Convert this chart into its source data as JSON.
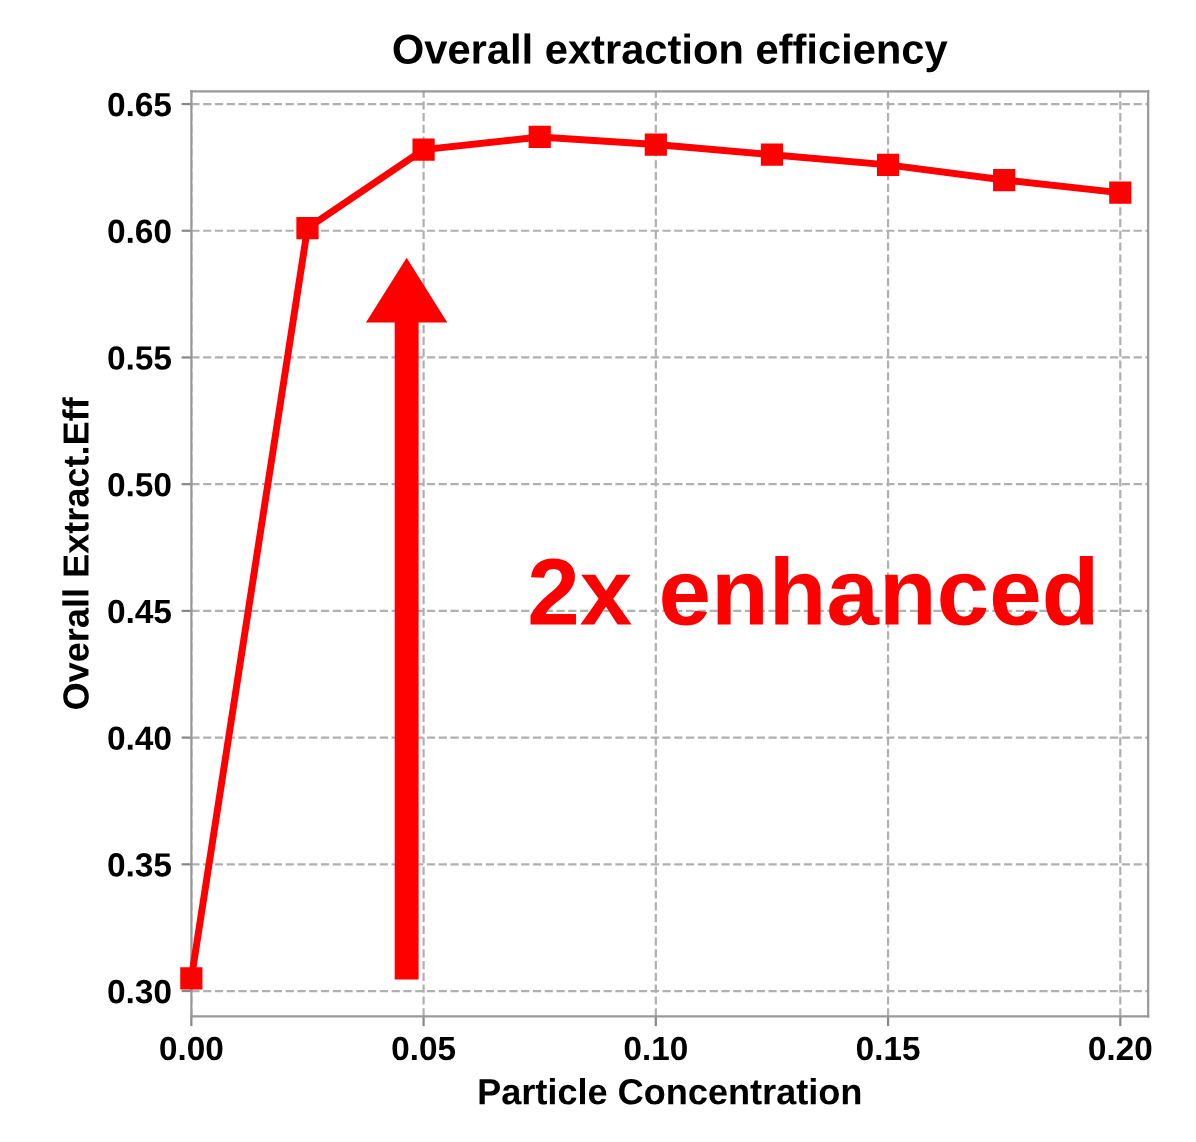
{
  "chart_data": {
    "type": "line",
    "title": "Overall extraction efficiency",
    "xlabel": "Particle Concentration",
    "ylabel": "Overall Extract.Eff",
    "x": [
      0.0,
      0.025,
      0.05,
      0.075,
      0.1,
      0.125,
      0.15,
      0.175,
      0.2
    ],
    "series": [
      {
        "color": "#ff0000",
        "values": [
          0.305,
          0.601,
          0.632,
          0.637,
          0.634,
          0.63,
          0.626,
          0.62,
          0.615
        ]
      }
    ],
    "xlim": [
      0.0,
      0.206
    ],
    "ylim": [
      0.29,
      0.655
    ],
    "xticks": [
      {
        "value": 0.0,
        "label": "0.00"
      },
      {
        "value": 0.05,
        "label": "0.05"
      },
      {
        "value": 0.1,
        "label": "0.10"
      },
      {
        "value": 0.15,
        "label": "0.15"
      },
      {
        "value": 0.2,
        "label": "0.20"
      }
    ],
    "yticks": [
      {
        "value": 0.3,
        "label": "0.30"
      },
      {
        "value": 0.35,
        "label": "0.35"
      },
      {
        "value": 0.4,
        "label": "0.40"
      },
      {
        "value": 0.45,
        "label": "0.45"
      },
      {
        "value": 0.5,
        "label": "0.50"
      },
      {
        "value": 0.55,
        "label": "0.55"
      },
      {
        "value": 0.6,
        "label": "0.60"
      },
      {
        "value": 0.65,
        "label": "0.65"
      }
    ],
    "grid": true,
    "marker": "square",
    "line_style": "solid",
    "annotations": [
      "2x enhanced"
    ]
  }
}
